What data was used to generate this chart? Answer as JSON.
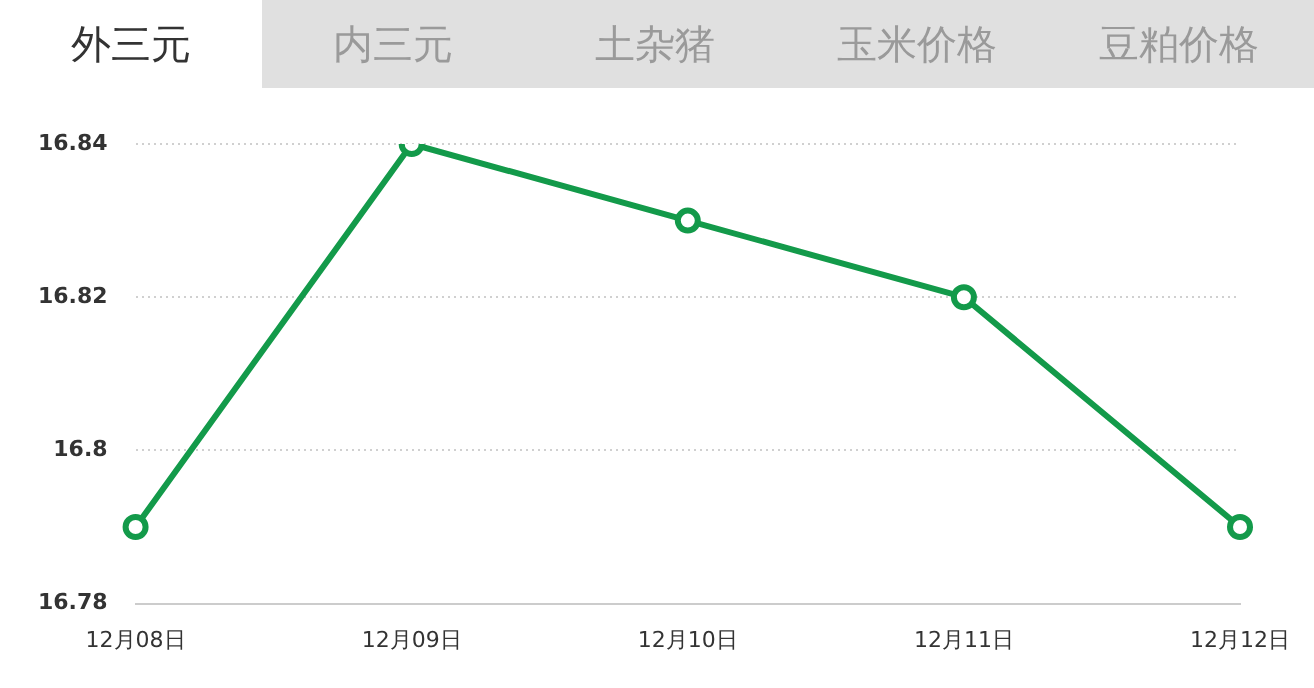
{
  "chart_data": {
    "type": "line",
    "title": "外三元",
    "annotations": [
      "内三元",
      "土杂猪",
      "玉米价格",
      "豆粕价格"
    ],
    "categories": [
      "12月08日",
      "12月09日",
      "12月10日",
      "12月11日",
      "12月12日"
    ],
    "series": [
      {
        "color": "#139a4a",
        "values": [
          16.79,
          16.84,
          16.83,
          16.82,
          16.79
        ]
      }
    ],
    "ylim": [
      16.78,
      16.84
    ],
    "yticks": [
      16.78,
      16.8,
      16.82,
      16.84
    ],
    "grid": "y",
    "legend": false,
    "marker": "circle",
    "line_style": "solid"
  }
}
